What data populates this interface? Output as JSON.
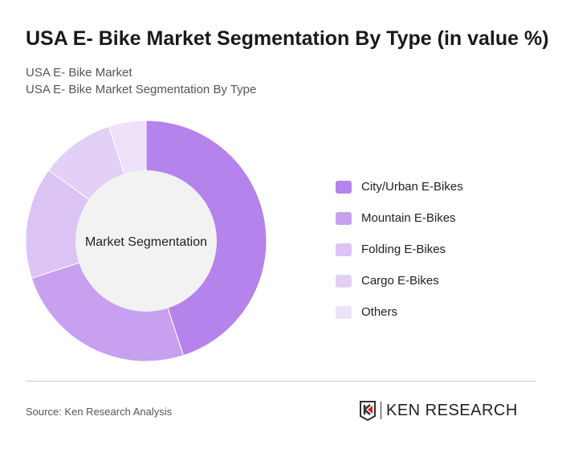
{
  "header": {
    "title": "USA E- Bike Market Segmentation By Type (in value %)",
    "subtitle1": "USA E- Bike Market",
    "subtitle2": "USA E- Bike Market Segmentation By Type"
  },
  "chart_data": {
    "type": "pie",
    "donut": true,
    "center_label": "Market Segmentation",
    "categories": [
      "City/Urban E-Bikes",
      "Mountain E-Bikes",
      "Folding E-Bikes",
      "Cargo E-Bikes",
      "Others"
    ],
    "values": [
      45,
      25,
      15,
      10,
      5
    ],
    "colors": [
      "#b583ec",
      "#c7a0ef",
      "#dbc3f6",
      "#e3d0f7",
      "#ede2fa"
    ],
    "legend_position": "right"
  },
  "footer": {
    "source": "Source: Ken Research Analysis",
    "logo_text": "KEN RESEARCH"
  }
}
